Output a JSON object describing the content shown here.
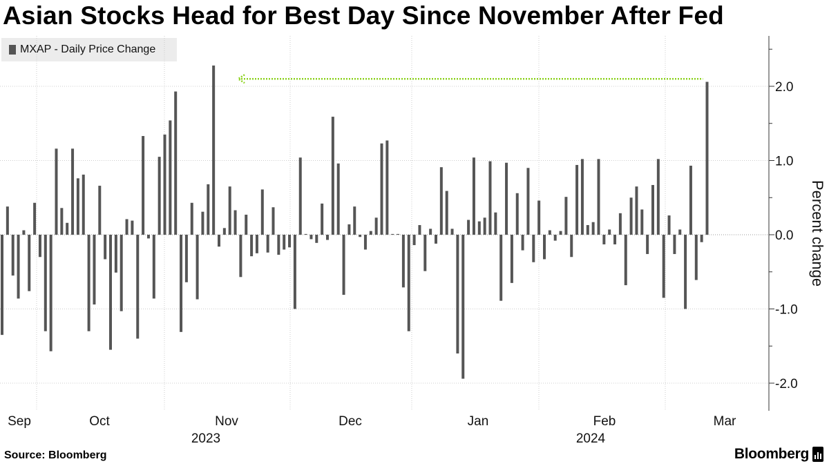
{
  "title": "Asian Stocks Head for Best Day Since November After Fed",
  "legend": {
    "label": "MXAP - Daily Price Change"
  },
  "source": "Source: Bloomberg",
  "brand": "Bloomberg",
  "colors": {
    "bar": "#555555",
    "grid": "#cccccc",
    "annotation": "#8cd21e",
    "legend_bg": "#ececec"
  },
  "chart_data": {
    "type": "bar",
    "title": "Asian Stocks Head for Best Day Since November After Fed",
    "ylabel": "Percent change",
    "ylim": [
      -2.35,
      2.7
    ],
    "yticks": [
      2.0,
      1.0,
      0.0,
      -1.0,
      -2.0
    ],
    "ytick_labels": [
      "2.0",
      "1.0",
      "0.0",
      "-1.0",
      "-2.0"
    ],
    "x_month_labels": [
      "Sep",
      "Oct",
      "Nov",
      "Dec",
      "Jan",
      "Feb",
      "Mar"
    ],
    "x_year_labels": [
      "2023",
      "2024"
    ],
    "annotation": {
      "type": "dashed-arrow",
      "level": 2.1,
      "from": "last bar",
      "to": "early-November peak"
    },
    "grid": true,
    "legend_position": "top-left",
    "series": [
      {
        "name": "MXAP - Daily Price Change",
        "values": [
          -1.35,
          0.38,
          -0.55,
          -0.86,
          0.06,
          -0.76,
          0.43,
          -0.3,
          -1.3,
          -1.57,
          1.16,
          0.36,
          0.16,
          1.16,
          0.76,
          0.81,
          -1.3,
          -0.94,
          0.66,
          -0.33,
          -1.55,
          -0.51,
          -1.03,
          0.21,
          0.19,
          -1.4,
          1.33,
          -0.05,
          -0.86,
          1.05,
          1.35,
          1.54,
          1.93,
          -1.31,
          -0.64,
          0.43,
          -0.87,
          0.31,
          0.68,
          2.28,
          -0.16,
          0.09,
          0.65,
          0.33,
          -0.57,
          0.27,
          -0.29,
          -0.25,
          0.61,
          -0.24,
          0.37,
          -0.27,
          -0.2,
          -0.17,
          -1.0,
          1.04,
          0.01,
          -0.06,
          -0.11,
          0.42,
          -0.07,
          1.59,
          0.96,
          -0.81,
          0.14,
          0.38,
          -0.03,
          -0.2,
          0.05,
          0.23,
          1.23,
          1.27,
          0.01,
          0.01,
          -0.71,
          -1.3,
          -0.14,
          0.13,
          -0.49,
          0.08,
          -0.12,
          0.91,
          0.59,
          0.08,
          -1.6,
          -1.94,
          0.2,
          1.04,
          0.18,
          0.23,
          0.99,
          0.3,
          -0.89,
          0.97,
          -0.65,
          0.56,
          -0.21,
          0.9,
          -0.37,
          0.46,
          -0.33,
          0.06,
          -0.08,
          0.05,
          0.51,
          -0.3,
          0.94,
          1.02,
          0.13,
          0.17,
          1.02,
          -0.13,
          0.07,
          -0.13,
          0.29,
          -0.68,
          0.5,
          0.65,
          0.34,
          -0.26,
          0.67,
          1.02,
          -0.85,
          0.26,
          -0.26,
          0.07,
          -1.0,
          0.93,
          -0.61,
          -0.1,
          2.06
        ]
      }
    ]
  }
}
